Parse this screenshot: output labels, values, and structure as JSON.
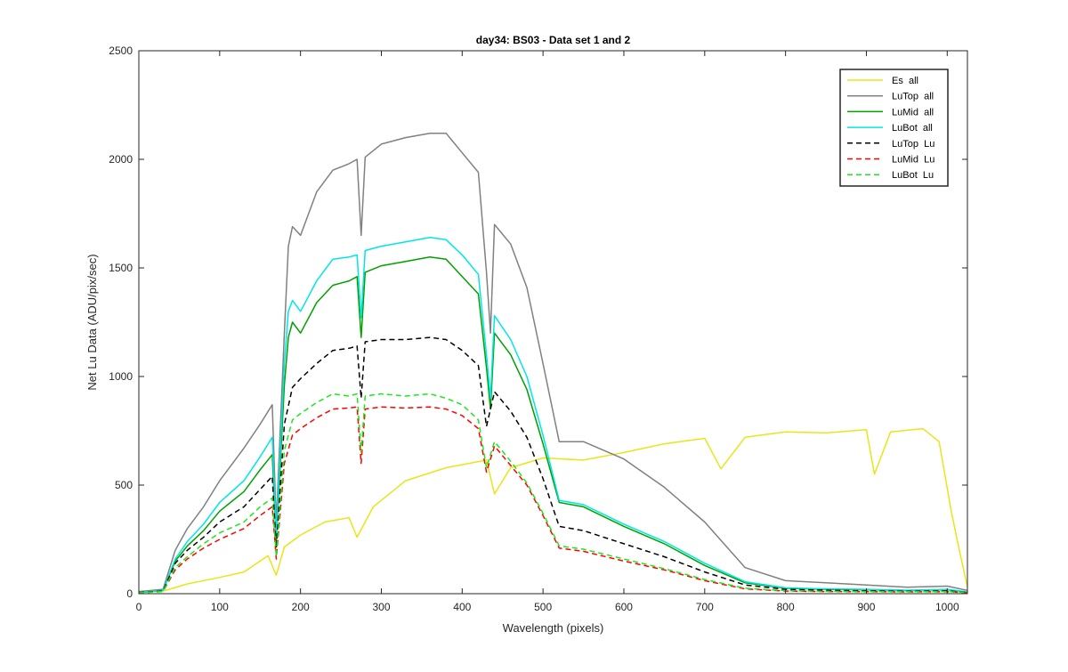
{
  "chart_data": {
    "type": "line",
    "title": "day34: BS03 - Data set 1 and 2",
    "xlabel": "Wavelength (pixels)",
    "ylabel": "Net Lu Data (ADU/pix/sec)",
    "xlim": [
      0,
      1025
    ],
    "ylim": [
      0,
      2500
    ],
    "xticks": [
      0,
      100,
      200,
      300,
      400,
      500,
      600,
      700,
      800,
      900,
      1000
    ],
    "yticks": [
      0,
      500,
      1000,
      1500,
      2000,
      2500
    ],
    "grid": false,
    "legend_position": "top-right",
    "series": [
      {
        "name": "Es  all",
        "color": "#e6e61a",
        "dash": "solid",
        "x": [
          0,
          30,
          60,
          100,
          130,
          150,
          160,
          170,
          180,
          200,
          230,
          260,
          270,
          290,
          330,
          380,
          430,
          440,
          460,
          500,
          550,
          600,
          650,
          700,
          720,
          750,
          800,
          850,
          900,
          910,
          930,
          970,
          990,
          1005,
          1015,
          1025
        ],
        "y": [
          5,
          12,
          45,
          75,
          100,
          150,
          175,
          85,
          215,
          270,
          330,
          350,
          260,
          400,
          520,
          580,
          615,
          460,
          580,
          625,
          615,
          650,
          690,
          715,
          575,
          720,
          745,
          740,
          755,
          550,
          745,
          760,
          700,
          380,
          200,
          30
        ]
      },
      {
        "name": "LuTop  all",
        "color": "#808080",
        "dash": "solid",
        "x": [
          0,
          30,
          45,
          60,
          80,
          100,
          130,
          150,
          165,
          170,
          180,
          185,
          190,
          200,
          220,
          240,
          260,
          270,
          275,
          280,
          300,
          330,
          360,
          380,
          400,
          420,
          430,
          435,
          440,
          460,
          480,
          500,
          520,
          550,
          600,
          650,
          700,
          750,
          800,
          850,
          900,
          950,
          1000,
          1025
        ],
        "y": [
          10,
          20,
          200,
          300,
          400,
          520,
          670,
          780,
          870,
          320,
          1200,
          1600,
          1690,
          1650,
          1850,
          1950,
          1980,
          2000,
          1650,
          2010,
          2070,
          2100,
          2120,
          2120,
          2030,
          1940,
          1480,
          1200,
          1700,
          1610,
          1410,
          1060,
          700,
          700,
          620,
          490,
          330,
          120,
          60,
          50,
          40,
          30,
          35,
          15
        ]
      },
      {
        "name": "LuMid  all",
        "color": "#00a000",
        "dash": "solid",
        "x": [
          0,
          30,
          45,
          60,
          80,
          100,
          130,
          150,
          165,
          170,
          180,
          185,
          190,
          200,
          220,
          240,
          260,
          270,
          275,
          280,
          300,
          330,
          360,
          380,
          400,
          420,
          430,
          435,
          440,
          460,
          480,
          500,
          520,
          550,
          600,
          650,
          700,
          750,
          800,
          850,
          900,
          950,
          1000,
          1025
        ],
        "y": [
          5,
          15,
          150,
          220,
          290,
          380,
          470,
          570,
          640,
          240,
          960,
          1180,
          1250,
          1200,
          1340,
          1420,
          1440,
          1460,
          1180,
          1480,
          1510,
          1530,
          1550,
          1540,
          1460,
          1380,
          1040,
          850,
          1200,
          1100,
          940,
          690,
          420,
          400,
          310,
          230,
          130,
          50,
          25,
          20,
          18,
          15,
          18,
          8
        ]
      },
      {
        "name": "LuBot  all",
        "color": "#00e6e6",
        "dash": "solid",
        "x": [
          0,
          30,
          45,
          60,
          80,
          100,
          130,
          150,
          165,
          170,
          180,
          185,
          190,
          200,
          220,
          240,
          260,
          270,
          275,
          280,
          300,
          330,
          360,
          380,
          400,
          420,
          430,
          435,
          440,
          460,
          480,
          500,
          520,
          550,
          600,
          650,
          700,
          750,
          800,
          850,
          900,
          950,
          1000,
          1025
        ],
        "y": [
          5,
          15,
          160,
          240,
          320,
          420,
          520,
          630,
          720,
          260,
          1060,
          1300,
          1350,
          1300,
          1440,
          1540,
          1550,
          1560,
          1270,
          1580,
          1600,
          1620,
          1640,
          1630,
          1560,
          1470,
          1100,
          900,
          1280,
          1170,
          1000,
          730,
          430,
          410,
          320,
          240,
          140,
          55,
          27,
          22,
          20,
          16,
          20,
          8
        ]
      },
      {
        "name": "LuTop  Lu",
        "color": "#000000",
        "dash": "dashed",
        "x": [
          0,
          30,
          45,
          60,
          80,
          100,
          130,
          150,
          165,
          170,
          180,
          190,
          200,
          220,
          240,
          260,
          270,
          275,
          280,
          300,
          330,
          360,
          380,
          400,
          420,
          430,
          440,
          460,
          480,
          500,
          520,
          550,
          600,
          650,
          700,
          750,
          800,
          850,
          900,
          950,
          1000,
          1025
        ],
        "y": [
          5,
          12,
          140,
          200,
          260,
          330,
          400,
          480,
          540,
          210,
          780,
          950,
          990,
          1060,
          1120,
          1130,
          1140,
          900,
          1160,
          1170,
          1170,
          1180,
          1170,
          1120,
          1050,
          770,
          930,
          840,
          720,
          530,
          310,
          290,
          230,
          170,
          100,
          40,
          20,
          16,
          13,
          11,
          13,
          5
        ]
      },
      {
        "name": "LuMid  Lu",
        "color": "#ff0000",
        "dash": "dashed",
        "x": [
          0,
          30,
          45,
          60,
          80,
          100,
          130,
          150,
          165,
          170,
          180,
          190,
          200,
          220,
          240,
          260,
          270,
          275,
          280,
          300,
          330,
          360,
          380,
          400,
          420,
          430,
          440,
          460,
          480,
          500,
          520,
          550,
          600,
          650,
          700,
          750,
          800,
          850,
          900,
          950,
          1000,
          1025
        ],
        "y": [
          4,
          10,
          110,
          160,
          210,
          250,
          300,
          360,
          400,
          160,
          600,
          730,
          760,
          810,
          850,
          855,
          860,
          600,
          850,
          860,
          855,
          860,
          850,
          820,
          760,
          560,
          680,
          590,
          500,
          360,
          210,
          195,
          150,
          110,
          60,
          22,
          12,
          10,
          9,
          8,
          9,
          4
        ]
      },
      {
        "name": "LuBot  Lu",
        "color": "#1ee61e",
        "dash": "dashed",
        "x": [
          0,
          30,
          45,
          60,
          80,
          100,
          130,
          150,
          165,
          170,
          180,
          190,
          200,
          220,
          240,
          260,
          270,
          275,
          280,
          300,
          330,
          360,
          380,
          400,
          420,
          430,
          440,
          460,
          480,
          500,
          520,
          550,
          600,
          650,
          700,
          750,
          800,
          850,
          900,
          950,
          1000,
          1025
        ],
        "y": [
          4,
          10,
          120,
          170,
          230,
          280,
          330,
          400,
          440,
          170,
          660,
          800,
          830,
          880,
          920,
          910,
          920,
          650,
          910,
          920,
          910,
          920,
          900,
          870,
          800,
          580,
          700,
          610,
          510,
          370,
          220,
          205,
          160,
          115,
          65,
          25,
          14,
          11,
          10,
          9,
          10,
          5
        ]
      }
    ]
  }
}
